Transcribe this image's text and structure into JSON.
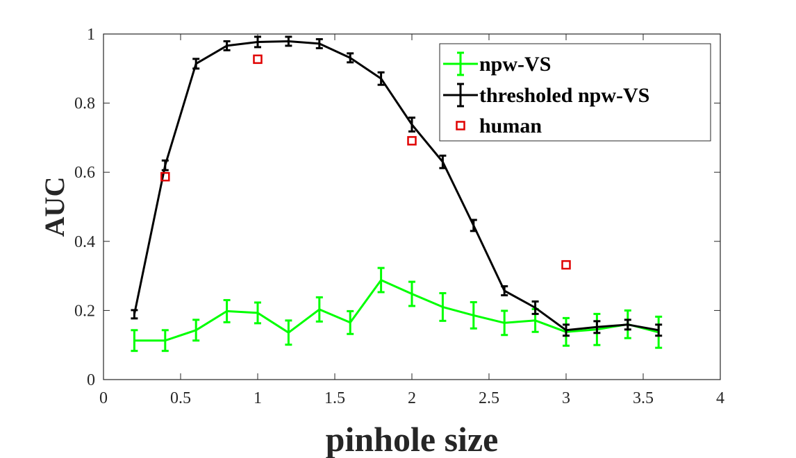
{
  "chart_data": {
    "type": "line",
    "title": "",
    "xlabel": "pinhole size",
    "ylabel": "AUC",
    "xlim": [
      0,
      4
    ],
    "ylim": [
      0,
      1
    ],
    "xticks": [
      0,
      0.5,
      1,
      1.5,
      2,
      2.5,
      3,
      3.5,
      4
    ],
    "xtick_labels": [
      "0",
      "0.5",
      "1",
      "1.5",
      "2",
      "2.5",
      "3",
      "3.5",
      "4"
    ],
    "yticks": [
      0,
      0.2,
      0.4,
      0.6,
      0.8,
      1
    ],
    "ytick_labels": [
      "0",
      "0.2",
      "0.4",
      "0.6",
      "0.8",
      "1"
    ],
    "grid": false,
    "legend_position": "top-right",
    "series": [
      {
        "name": "npw-VS",
        "color": "#00ff00",
        "style": "line-errorbar",
        "x": [
          0.2,
          0.4,
          0.6,
          0.8,
          1.0,
          1.2,
          1.4,
          1.6,
          1.8,
          2.0,
          2.2,
          2.4,
          2.6,
          2.8,
          3.0,
          3.2,
          3.4,
          3.6
        ],
        "y": [
          0.113,
          0.113,
          0.143,
          0.198,
          0.193,
          0.136,
          0.203,
          0.165,
          0.288,
          0.248,
          0.21,
          0.186,
          0.164,
          0.171,
          0.138,
          0.145,
          0.16,
          0.137
        ],
        "err": [
          0.03,
          0.03,
          0.03,
          0.032,
          0.03,
          0.035,
          0.035,
          0.033,
          0.035,
          0.035,
          0.04,
          0.038,
          0.035,
          0.033,
          0.04,
          0.045,
          0.04,
          0.045
        ]
      },
      {
        "name": "thresholed npw-VS",
        "color": "#000000",
        "style": "line-errorbar",
        "x": [
          0.2,
          0.4,
          0.6,
          0.8,
          1.0,
          1.2,
          1.4,
          1.6,
          1.8,
          2.0,
          2.2,
          2.4,
          2.6,
          2.8,
          3.0,
          3.2,
          3.4,
          3.6
        ],
        "y": [
          0.189,
          0.62,
          0.914,
          0.966,
          0.977,
          0.979,
          0.972,
          0.931,
          0.871,
          0.738,
          0.63,
          0.446,
          0.257,
          0.208,
          0.143,
          0.152,
          0.159,
          0.143
        ],
        "err": [
          0.012,
          0.014,
          0.014,
          0.013,
          0.015,
          0.013,
          0.013,
          0.013,
          0.018,
          0.02,
          0.018,
          0.016,
          0.013,
          0.018,
          0.016,
          0.017,
          0.014,
          0.016
        ]
      },
      {
        "name": "human",
        "color": "#e00000",
        "style": "marker-square",
        "x": [
          0.4,
          1.0,
          2.0,
          3.0
        ],
        "y": [
          0.587,
          0.927,
          0.691,
          0.332
        ]
      }
    ]
  }
}
